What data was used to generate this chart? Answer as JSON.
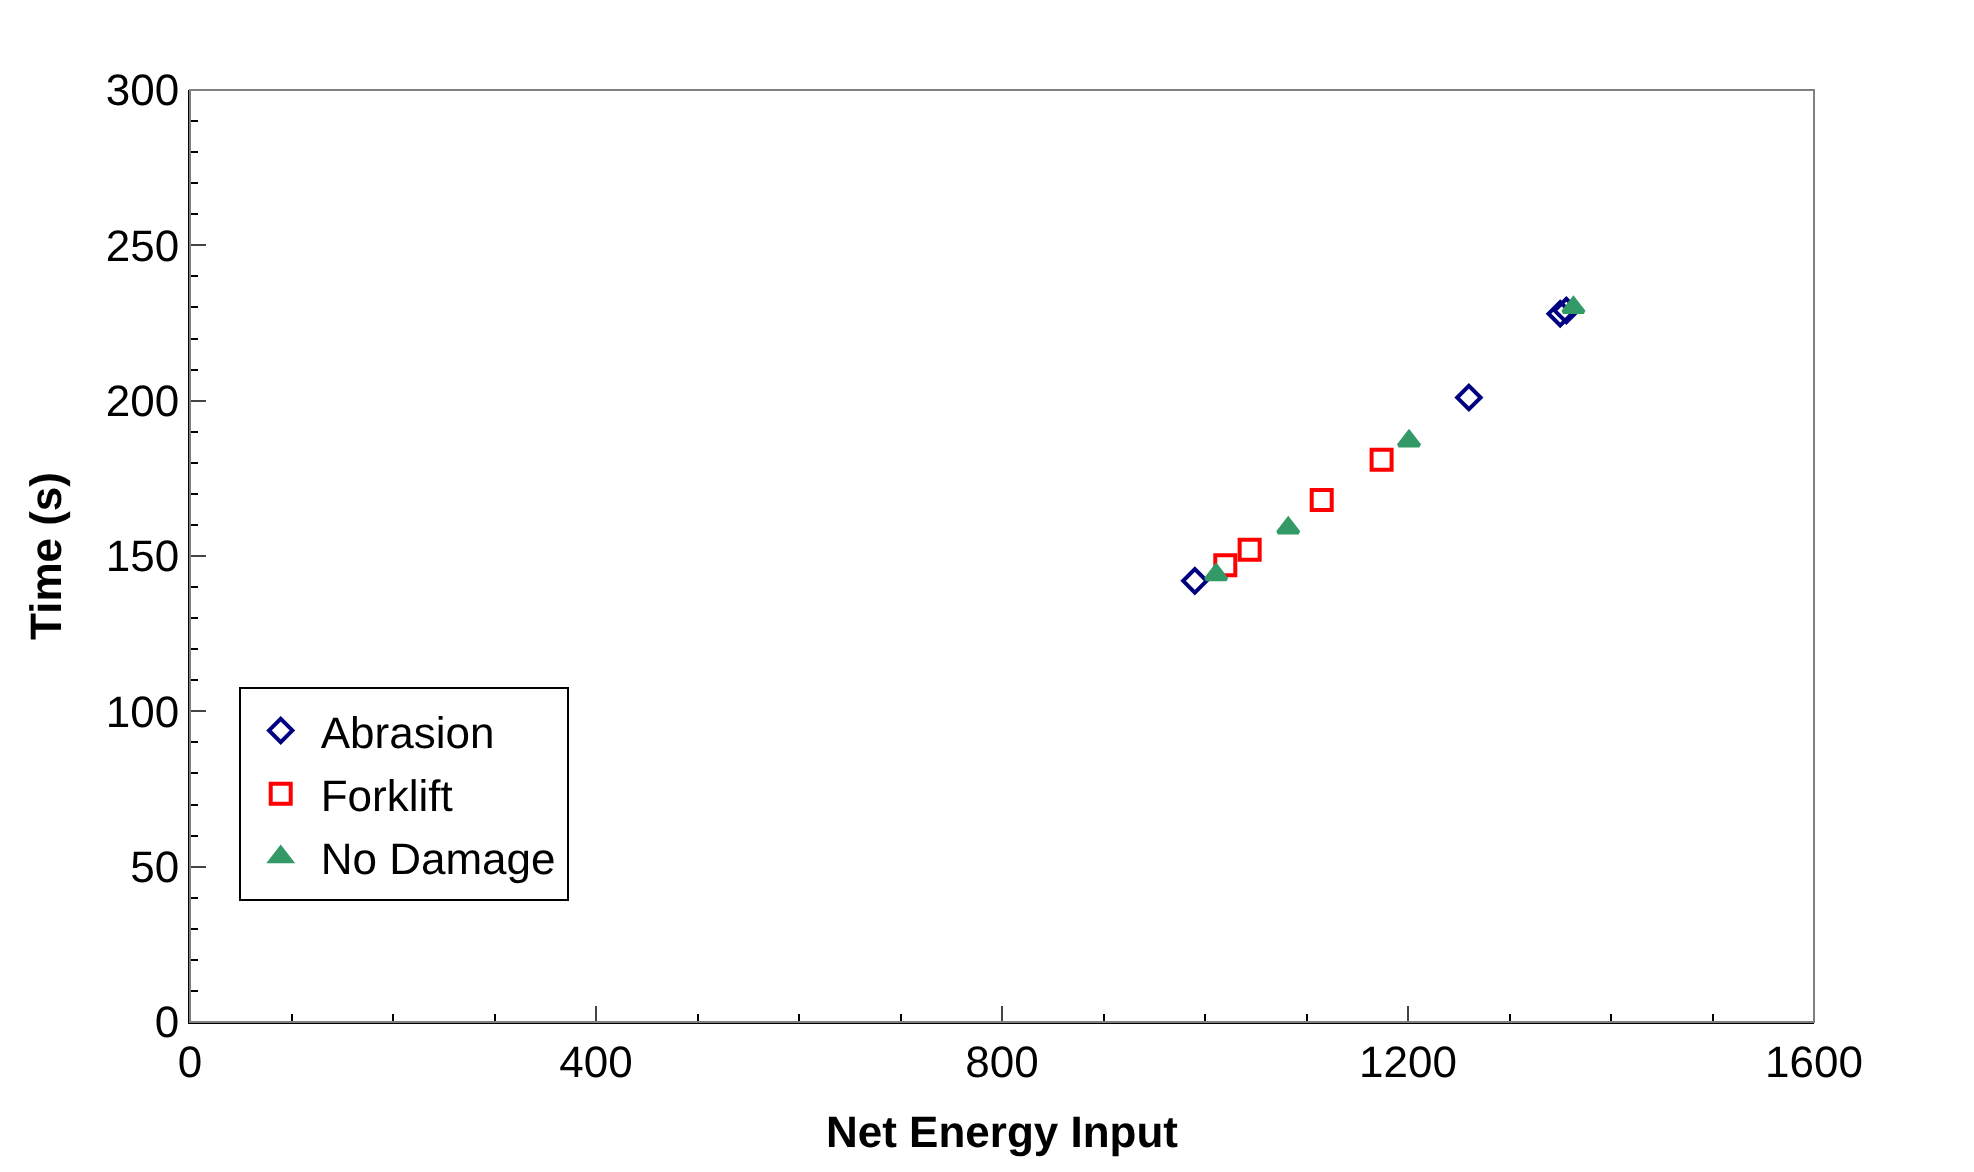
{
  "chart_data": {
    "type": "scatter",
    "xlabel": "Net Energy Input",
    "ylabel": "Time (s)",
    "xlim": [
      0,
      1600
    ],
    "xticks": [
      0,
      400,
      800,
      1200,
      1600
    ],
    "ylim": [
      0,
      300
    ],
    "yticks": [
      0,
      50,
      100,
      150,
      200,
      250,
      300
    ],
    "legend": "bottom left",
    "series": [
      {
        "name": "Abrasion",
        "color": "#000080",
        "marker": "diamond",
        "x": [
          990,
          1260,
          1350,
          1356
        ],
        "values": [
          142,
          201,
          228,
          229
        ]
      },
      {
        "name": "Forklift",
        "color": "#ff0000",
        "marker": "square",
        "x": [
          1020,
          1044,
          1115,
          1174
        ],
        "values": [
          147,
          152,
          168,
          181
        ]
      },
      {
        "name": "No Damage",
        "color": "#339966",
        "marker": "triangle",
        "x": [
          1011,
          1082,
          1201,
          1363
        ],
        "values": [
          144,
          159,
          187,
          230
        ]
      }
    ]
  }
}
